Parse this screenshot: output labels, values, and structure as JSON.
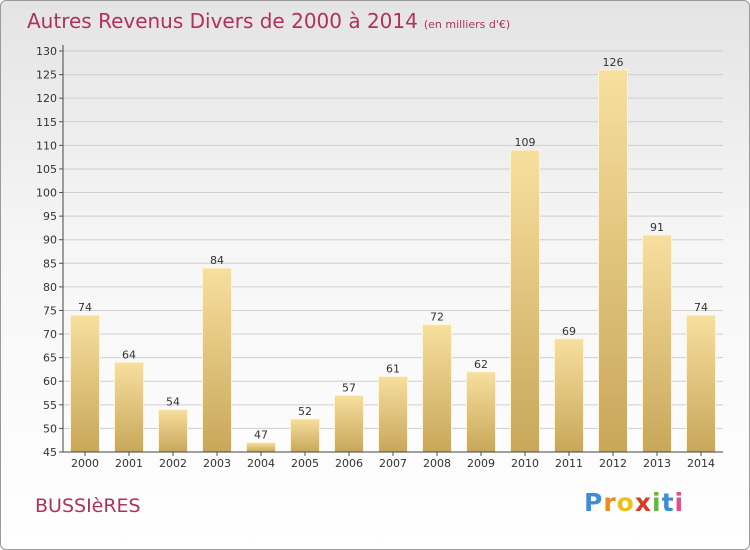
{
  "title": "Autres Revenus Divers de 2000 à 2014",
  "subtitle": "(en milliers d'€)",
  "town": "BUSSIèRES",
  "logo": {
    "letters": [
      "P",
      "r",
      "o",
      "x",
      "i",
      "t",
      "i"
    ],
    "colors": [
      "#3a8fd8",
      "#f08a1c",
      "#e8c21a",
      "#d83a2a",
      "#62b83a",
      "#3a8fd8",
      "#e84a8a"
    ]
  },
  "colors": {
    "bar_top": "#f7df9e",
    "bar_bottom": "#c8a75a",
    "title": "#b0315a"
  },
  "chart_data": {
    "type": "bar",
    "categories": [
      "2000",
      "2001",
      "2002",
      "2003",
      "2004",
      "2005",
      "2006",
      "2007",
      "2008",
      "2009",
      "2010",
      "2011",
      "2012",
      "2013",
      "2014"
    ],
    "values": [
      74,
      64,
      54,
      84,
      47,
      52,
      57,
      61,
      72,
      62,
      109,
      69,
      126,
      91,
      74
    ],
    "title": "Autres Revenus Divers de 2000 à 2014",
    "subtitle": "(en milliers d'€)",
    "ylim": [
      45,
      130
    ],
    "yticks": [
      45,
      50,
      55,
      60,
      65,
      70,
      75,
      80,
      85,
      90,
      95,
      100,
      105,
      110,
      115,
      120,
      125,
      130
    ],
    "grid": true
  }
}
